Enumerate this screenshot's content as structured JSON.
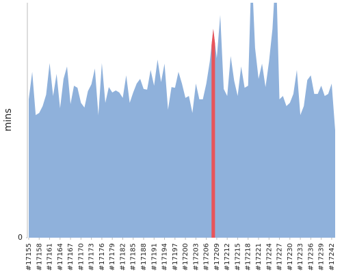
{
  "chart_data": {
    "type": "area",
    "ylabel": "mins",
    "categories": [
      "#17155",
      null,
      null,
      "#17158",
      null,
      null,
      "#17161",
      null,
      null,
      "#17164",
      null,
      null,
      "#17167",
      null,
      null,
      "#17170",
      null,
      null,
      "#17173",
      null,
      null,
      "#17176",
      null,
      null,
      "#17179",
      null,
      null,
      "#17182",
      null,
      null,
      "#17185",
      null,
      null,
      "#17188",
      null,
      null,
      "#17191",
      null,
      null,
      "#17194",
      null,
      null,
      "#17197",
      null,
      null,
      "#17200",
      null,
      null,
      "#17203",
      null,
      null,
      "#17206",
      null,
      null,
      "#17209",
      null,
      null,
      "#17212",
      null,
      null,
      "#17215",
      null,
      null,
      "#17218",
      null,
      null,
      "#17221",
      null,
      null,
      "#17224",
      null,
      null,
      "#17227",
      null,
      null,
      "#17230",
      null,
      null,
      "#17233",
      null,
      null,
      "#17236",
      null,
      null,
      "#17239",
      null,
      null,
      "#17242",
      null
    ],
    "values": [
      58.9,
      70.6,
      52.2,
      53.1,
      56.0,
      60.9,
      74.3,
      60.3,
      69.7,
      55.1,
      67.6,
      72.9,
      56.9,
      64.7,
      63.8,
      57.4,
      55.4,
      62.4,
      65.3,
      72.0,
      52.2,
      74.3,
      57.4,
      64.1,
      61.8,
      62.7,
      61.8,
      59.5,
      69.1,
      57.4,
      61.8,
      65.6,
      67.6,
      63.3,
      63.0,
      71.4,
      64.7,
      75.8,
      66.2,
      74.1,
      54.5,
      64.1,
      63.8,
      70.6,
      65.6,
      59.5,
      60.3,
      53.1,
      65.6,
      58.9,
      58.9,
      65.6,
      75.0,
      88.9,
      76.4,
      94.8,
      63.3,
      60.3,
      77.3,
      66.8,
      60.3,
      72.9,
      63.8,
      64.7,
      115,
      80.8,
      67.6,
      74.1,
      64.1,
      74.9,
      88.9,
      115,
      58.9,
      60.3,
      56.0,
      57.4,
      61.2,
      71.4,
      52.2,
      56.0,
      67.1,
      69.1,
      61.2,
      61.2,
      64.7,
      60.3,
      61.2,
      65.6,
      45.8
    ],
    "color": "#8fb1db",
    "highlight_index": 53,
    "highlight_color": "#e8545a",
    "ylim": [
      0,
      100
    ],
    "yticks": [
      0
    ]
  }
}
